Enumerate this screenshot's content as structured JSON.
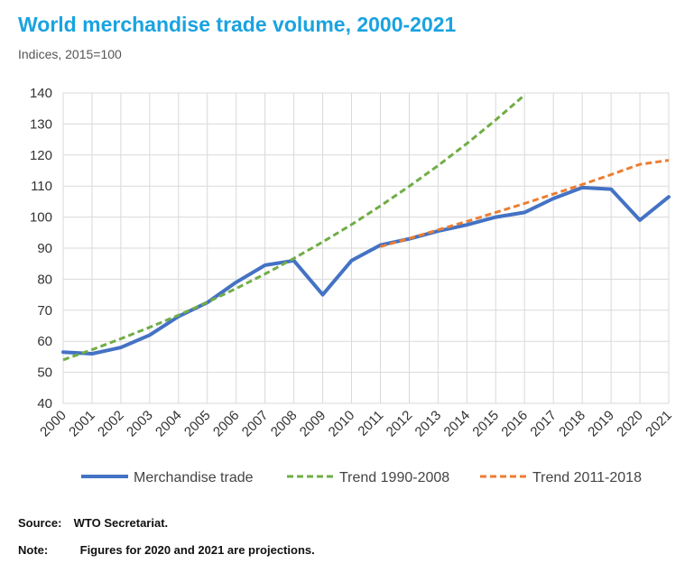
{
  "chart_data": {
    "type": "line",
    "title": "World merchandise trade volume, 2000-2021",
    "subtitle": "Indices, 2015=100",
    "ylim": [
      40,
      140
    ],
    "yticks": [
      40,
      50,
      60,
      70,
      80,
      90,
      100,
      110,
      120,
      130,
      140
    ],
    "x": [
      "2000",
      "2001",
      "2002",
      "2003",
      "2004",
      "2005",
      "2006",
      "2007",
      "2008",
      "2009",
      "2010",
      "2011",
      "2012",
      "2013",
      "2014",
      "2015",
      "2016",
      "2017",
      "2018",
      "2019",
      "2020",
      "2021"
    ],
    "grid": true,
    "legend_position": "bottom",
    "series": [
      {
        "name": "Merchandise trade",
        "style": "solid",
        "color": "#4472c4",
        "values": [
          56.5,
          56.0,
          58.0,
          62.0,
          68.0,
          72.5,
          79.0,
          84.5,
          86.0,
          75.0,
          86.0,
          91.0,
          93.0,
          95.5,
          97.5,
          100.0,
          101.5,
          106.0,
          109.5,
          109.0,
          99.0,
          106.5
        ]
      },
      {
        "name": "Trend 1990-2008",
        "style": "dashed",
        "color": "#70ad47",
        "x": [
          "2000",
          "2001",
          "2002",
          "2003",
          "2004",
          "2005",
          "2006",
          "2007",
          "2008",
          "2009",
          "2010",
          "2011",
          "2012",
          "2013",
          "2014",
          "2015",
          "2016"
        ],
        "values": [
          54.0,
          57.3,
          60.8,
          64.5,
          68.4,
          72.6,
          77.0,
          81.7,
          86.7,
          92.0,
          97.6,
          103.6,
          109.9,
          116.6,
          123.7,
          131.3,
          139.3
        ]
      },
      {
        "name": "Trend 2011-2018",
        "style": "dashed",
        "color": "#ed7d31",
        "x": [
          "2011",
          "2012",
          "2013",
          "2014",
          "2015",
          "2016",
          "2017",
          "2018",
          "2019",
          "2020",
          "2021"
        ],
        "values": [
          90.5,
          93.1,
          95.9,
          98.6,
          101.5,
          104.4,
          107.4,
          110.5,
          113.7,
          117.0,
          118.3
        ]
      }
    ]
  },
  "footer": {
    "source_label": "Source:",
    "source_text": "WTO Secretariat.",
    "note_label": "Note:",
    "note_text": "Figures for 2020 and 2021 are projections."
  }
}
